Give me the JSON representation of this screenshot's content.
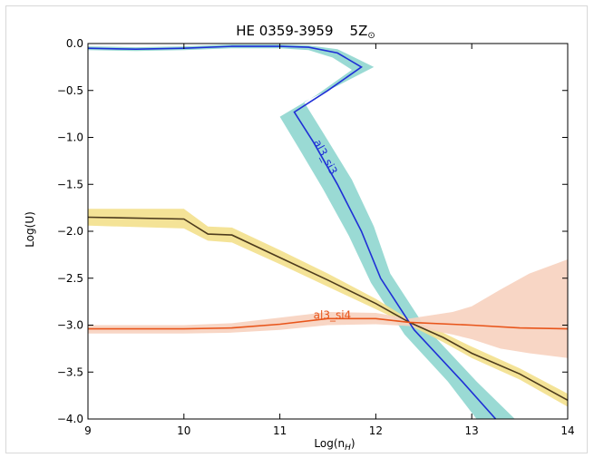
{
  "chart_data": {
    "type": "line",
    "title": "HE 0359-3959",
    "title_annotation": "5Z",
    "title_annotation_symbol": "⊙",
    "xlabel": "Log(n",
    "xlabel_sub": "H",
    "xlabel_end": ")",
    "ylabel": "Log(U)",
    "xlim": [
      9,
      14
    ],
    "ylim": [
      -4.0,
      0.0
    ],
    "xticks": [
      9,
      10,
      11,
      12,
      13,
      14
    ],
    "xtick_labels": [
      "9",
      "10",
      "11",
      "12",
      "13",
      "14"
    ],
    "yticks": [
      0.0,
      -0.5,
      -1.0,
      -1.5,
      -2.0,
      -2.5,
      -3.0,
      -3.5,
      -4.0
    ],
    "ytick_labels": [
      "0.0",
      "−0.5",
      "−1.0",
      "−1.5",
      "−2.0",
      "−2.5",
      "−3.0",
      "−3.5",
      "−4.0"
    ],
    "grid": false,
    "series": [
      {
        "name": "al3_si3",
        "line_color": "#1f2fd6",
        "band_color": "#8fd6cf",
        "label_at": {
          "x": 11.35,
          "y": -1.05
        },
        "label_rotation": 62,
        "line": [
          [
            9.0,
            -0.05
          ],
          [
            9.5,
            -0.06
          ],
          [
            10.0,
            -0.05
          ],
          [
            10.5,
            -0.03
          ],
          [
            11.0,
            -0.03
          ],
          [
            11.3,
            -0.04
          ],
          [
            11.6,
            -0.1
          ],
          [
            11.85,
            -0.25
          ],
          [
            11.5,
            -0.5
          ],
          [
            11.15,
            -0.73
          ],
          [
            11.35,
            -1.05
          ],
          [
            11.6,
            -1.5
          ],
          [
            11.85,
            -2.0
          ],
          [
            12.05,
            -2.5
          ],
          [
            12.4,
            -3.05
          ],
          [
            12.9,
            -3.6
          ],
          [
            13.25,
            -4.0
          ]
        ],
        "band_upper": [
          [
            9.0,
            -0.03
          ],
          [
            9.5,
            -0.04
          ],
          [
            10.0,
            -0.03
          ],
          [
            10.5,
            -0.01
          ],
          [
            11.0,
            -0.01
          ],
          [
            11.3,
            -0.02
          ],
          [
            11.6,
            -0.06
          ],
          [
            11.98,
            -0.25
          ],
          [
            11.6,
            -0.45
          ],
          [
            11.25,
            -0.62
          ],
          [
            11.45,
            -0.95
          ],
          [
            11.75,
            -1.45
          ],
          [
            11.98,
            -1.95
          ],
          [
            12.15,
            -2.45
          ],
          [
            12.5,
            -3.0
          ],
          [
            13.05,
            -3.6
          ],
          [
            13.45,
            -4.0
          ]
        ],
        "band_lower": [
          [
            9.0,
            -0.07
          ],
          [
            9.5,
            -0.08
          ],
          [
            10.0,
            -0.07
          ],
          [
            10.5,
            -0.05
          ],
          [
            11.0,
            -0.05
          ],
          [
            11.3,
            -0.07
          ],
          [
            11.55,
            -0.15
          ],
          [
            11.75,
            -0.28
          ],
          [
            11.38,
            -0.55
          ],
          [
            11.0,
            -0.78
          ],
          [
            11.2,
            -1.12
          ],
          [
            11.45,
            -1.55
          ],
          [
            11.72,
            -2.05
          ],
          [
            11.95,
            -2.55
          ],
          [
            12.3,
            -3.1
          ],
          [
            12.75,
            -3.6
          ],
          [
            13.05,
            -4.0
          ]
        ]
      },
      {
        "name": "",
        "line_color": "#4d3b1c",
        "band_color": "#f3e08c",
        "line": [
          [
            9.0,
            -1.85
          ],
          [
            10.0,
            -1.87
          ],
          [
            10.25,
            -2.03
          ],
          [
            10.5,
            -2.04
          ],
          [
            11.0,
            -2.28
          ],
          [
            11.5,
            -2.52
          ],
          [
            12.0,
            -2.77
          ],
          [
            12.35,
            -2.97
          ],
          [
            12.7,
            -3.13
          ],
          [
            13.0,
            -3.3
          ],
          [
            13.5,
            -3.52
          ],
          [
            14.0,
            -3.8
          ]
        ],
        "band_upper": [
          [
            9.0,
            -1.76
          ],
          [
            10.0,
            -1.76
          ],
          [
            10.25,
            -1.95
          ],
          [
            10.5,
            -1.96
          ],
          [
            11.0,
            -2.2
          ],
          [
            11.5,
            -2.45
          ],
          [
            12.0,
            -2.72
          ],
          [
            12.35,
            -2.94
          ],
          [
            12.7,
            -3.08
          ],
          [
            13.0,
            -3.23
          ],
          [
            13.5,
            -3.46
          ],
          [
            14.0,
            -3.73
          ]
        ],
        "band_lower": [
          [
            9.0,
            -1.94
          ],
          [
            10.0,
            -1.97
          ],
          [
            10.25,
            -2.1
          ],
          [
            10.5,
            -2.12
          ],
          [
            11.0,
            -2.35
          ],
          [
            11.5,
            -2.59
          ],
          [
            12.0,
            -2.83
          ],
          [
            12.35,
            -3.0
          ],
          [
            12.7,
            -3.18
          ],
          [
            13.0,
            -3.35
          ],
          [
            13.5,
            -3.58
          ],
          [
            14.0,
            -3.87
          ]
        ]
      },
      {
        "name": "al3_si4",
        "line_color": "#e8551b",
        "band_color": "#f7d2bf",
        "label_at": {
          "x": 11.35,
          "y": -2.93
        },
        "label_rotation": 0,
        "line": [
          [
            9.0,
            -3.04
          ],
          [
            10.0,
            -3.04
          ],
          [
            10.5,
            -3.03
          ],
          [
            11.0,
            -2.99
          ],
          [
            11.5,
            -2.93
          ],
          [
            12.0,
            -2.93
          ],
          [
            12.35,
            -2.97
          ],
          [
            13.0,
            -3.0
          ],
          [
            13.5,
            -3.03
          ],
          [
            14.0,
            -3.04
          ]
        ],
        "band_upper": [
          [
            9.0,
            -3.0
          ],
          [
            10.0,
            -3.0
          ],
          [
            10.5,
            -2.98
          ],
          [
            11.0,
            -2.92
          ],
          [
            11.5,
            -2.86
          ],
          [
            12.0,
            -2.87
          ],
          [
            12.35,
            -2.93
          ],
          [
            12.8,
            -2.86
          ],
          [
            13.0,
            -2.8
          ],
          [
            13.3,
            -2.62
          ],
          [
            13.6,
            -2.45
          ],
          [
            14.0,
            -2.3
          ]
        ],
        "band_lower": [
          [
            9.0,
            -3.09
          ],
          [
            10.0,
            -3.09
          ],
          [
            10.5,
            -3.08
          ],
          [
            11.0,
            -3.05
          ],
          [
            11.5,
            -3.0
          ],
          [
            12.0,
            -2.99
          ],
          [
            12.35,
            -3.01
          ],
          [
            12.8,
            -3.1
          ],
          [
            13.0,
            -3.15
          ],
          [
            13.3,
            -3.25
          ],
          [
            13.6,
            -3.3
          ],
          [
            14.0,
            -3.35
          ]
        ]
      }
    ]
  }
}
